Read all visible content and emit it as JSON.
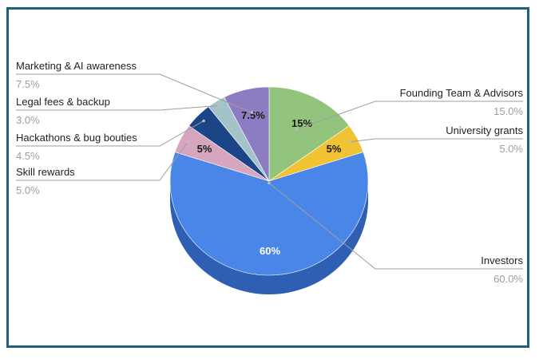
{
  "chart_data": {
    "type": "pie",
    "style": "3d",
    "title": "",
    "slices": [
      {
        "label": "Founding Team & Advisors",
        "value": 15.0,
        "legend_value": "15.0%",
        "inner_label": "15%",
        "color": "#93c47d",
        "side": "#6f9a5d",
        "inner_text_color": "#1a1a1a"
      },
      {
        "label": "University grants",
        "value": 5.0,
        "legend_value": "5.0%",
        "inner_label": "5%",
        "color": "#f1c232",
        "side": "#c49b22",
        "inner_text_color": "#1a1a1a"
      },
      {
        "label": "Investors",
        "value": 60.0,
        "legend_value": "60.0%",
        "inner_label": "60%",
        "color": "#4a86e8",
        "side": "#2f5fb2",
        "inner_text_color": "#ffffff"
      },
      {
        "label": "Skill rewards",
        "value": 5.0,
        "legend_value": "5.0%",
        "inner_label": "5%",
        "color": "#d5a6bd",
        "side": "#a8809a",
        "inner_text_color": "#1a1a1a"
      },
      {
        "label": "Hackathons & bug bouties",
        "value": 4.5,
        "legend_value": "4.5%",
        "inner_label": "",
        "color": "#1c4587",
        "side": "#132f5e",
        "inner_text_color": "#ffffff"
      },
      {
        "label": "Legal fees & backup",
        "value": 3.0,
        "legend_value": "3.0%",
        "inner_label": "",
        "color": "#a2c4c9",
        "side": "#7a9ba0",
        "inner_text_color": "#1a1a1a"
      },
      {
        "label": "Marketing & AI awareness",
        "value": 7.5,
        "legend_value": "7.5%",
        "inner_label": "7.5%",
        "color": "#8e7cc3",
        "side": "#6a5a9c",
        "inner_text_color": "#1a1a1a"
      }
    ],
    "legend": "leader-lines"
  }
}
